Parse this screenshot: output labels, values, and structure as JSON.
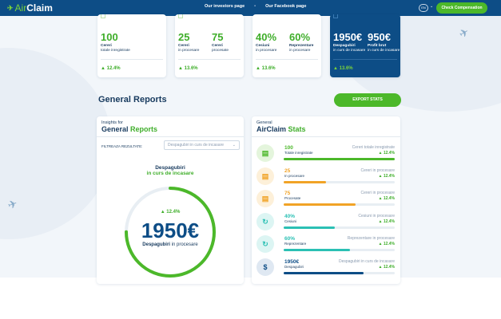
{
  "header": {
    "logo_prefix": "Air",
    "logo_suffix": "Claim",
    "nav": [
      "Our investors page",
      "Our Facebook page"
    ],
    "nav_separator": "•",
    "lang": "EN",
    "check_button": "Check Compensation"
  },
  "stat_cards": [
    {
      "items": [
        {
          "value": "100",
          "label": "Cereri",
          "sub": "totale inregistrate"
        }
      ],
      "pct": "12.4%"
    },
    {
      "items": [
        {
          "value": "25",
          "label": "Cereri",
          "sub": "in procesare"
        },
        {
          "value": "75",
          "label": "Cereri",
          "sub": "procesate"
        }
      ],
      "pct": "13.6%"
    },
    {
      "items": [
        {
          "value": "40%",
          "label": "Cesiuni",
          "sub": "in procesare"
        },
        {
          "value": "60%",
          "label": "Reprezentare",
          "sub": "in procesare"
        }
      ],
      "pct": "13.6%"
    },
    {
      "items": [
        {
          "value": "1950€",
          "label": "Despagubiri",
          "sub": "in curs de incasare"
        },
        {
          "value": "950€",
          "label": "Profit brut",
          "sub": "in curs de incasare"
        }
      ],
      "pct": "13.6%"
    }
  ],
  "section_title": "General Reports",
  "export_button": "EXPORT STATS",
  "insights": {
    "pre": "Insights for",
    "title_a": "General",
    "title_b": "Reports",
    "filter_label": "FILTREAZA REZULTATE:",
    "filter_value": "Despagubiri in curs de incasare",
    "chart_title_1": "Despagubiri",
    "chart_title_2": "in curs de incasare",
    "pct": "12.4%",
    "value": "1950€",
    "label_bold": "Despagubiri",
    "label_rest": "in procesare",
    "ring_fraction": 0.75,
    "ring_color": "#4cb82a"
  },
  "stats": {
    "pre": "General",
    "title_a": "AirClaim",
    "title_b": "Stats",
    "rows": [
      {
        "icon": "document-icon",
        "glyph": "▤",
        "value": "100",
        "label": "Totale inregistrate",
        "category": "Cereri totale inregistrate",
        "pct": "12.4%",
        "fraction": 1.0,
        "color": "#4cb82a",
        "bg": "#e4f5dc"
      },
      {
        "icon": "document-icon",
        "glyph": "▤",
        "value": "25",
        "label": "In procesare",
        "category": "Cereri in procesare",
        "pct": "12.4%",
        "fraction": 0.38,
        "color": "#f1a326",
        "bg": "#fdf0d9"
      },
      {
        "icon": "document-icon",
        "glyph": "▤",
        "value": "75",
        "label": "Procesate",
        "category": "Cereri in procesare",
        "pct": "12.4%",
        "fraction": 0.65,
        "color": "#f1a326",
        "bg": "#fdf0d9"
      },
      {
        "icon": "refresh-icon",
        "glyph": "↻",
        "value": "40%",
        "label": "Cesiuni",
        "category": "Cesiuni in procesare",
        "pct": "12.4%",
        "fraction": 0.46,
        "color": "#2bc0b4",
        "bg": "#dcf5f3"
      },
      {
        "icon": "refresh-icon",
        "glyph": "↻",
        "value": "60%",
        "label": "Reprezentare",
        "category": "Reprezentare in procesare",
        "pct": "12.4%",
        "fraction": 0.6,
        "color": "#2bc0b4",
        "bg": "#dcf5f3"
      },
      {
        "icon": "money-icon",
        "glyph": "$",
        "value": "1950€",
        "label": "Despagubiri",
        "category": "Despagubiri in curs de incasare",
        "pct": "12.4%",
        "fraction": 0.72,
        "color": "#0d4d86",
        "bg": "#dfe8f2"
      }
    ]
  }
}
